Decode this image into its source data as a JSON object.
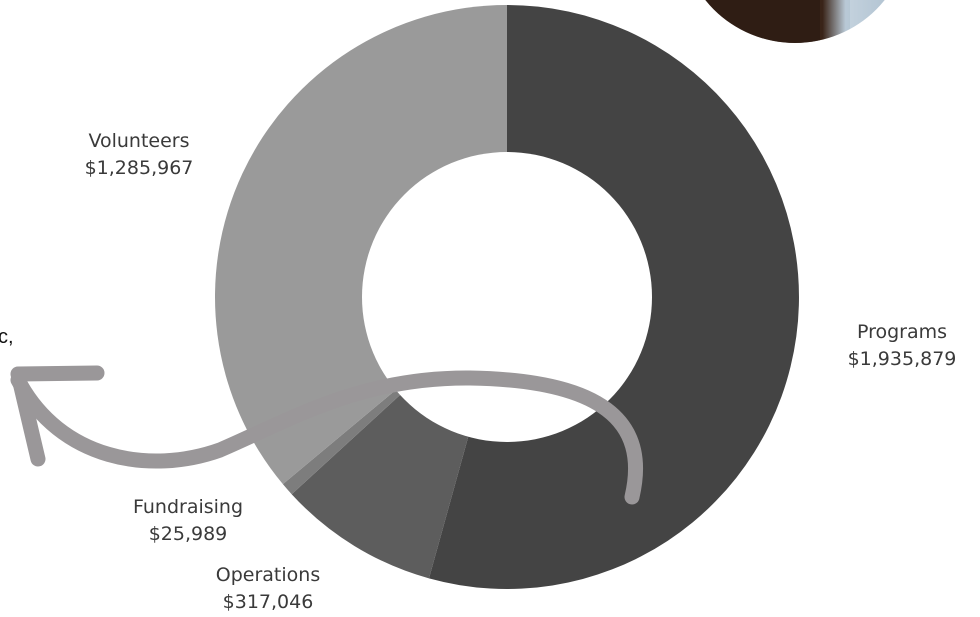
{
  "chart_data": {
    "type": "pie",
    "variant": "donut",
    "title": "",
    "slices": [
      {
        "name": "Programs",
        "value_label": "$1,935,879",
        "value": 1935879,
        "color": "#444444"
      },
      {
        "name": "Operations",
        "value_label": "$317,046",
        "value": 317046,
        "color": "#5d5d5d"
      },
      {
        "name": "Fundraising",
        "value_label": "$25,989",
        "value": 25989,
        "color": "#7d7d7d"
      },
      {
        "name": "Volunteers",
        "value_label": "$1,285,967",
        "value": 1285967,
        "color": "#9a9a9a"
      }
    ]
  },
  "partial_text": "c,",
  "colors": {
    "arrow": "#9a9799",
    "photo_dark": "#3a2418",
    "photo_light": "#b9c9d6"
  },
  "icons": [
    "curved-arrow-icon",
    "photo-circle"
  ]
}
